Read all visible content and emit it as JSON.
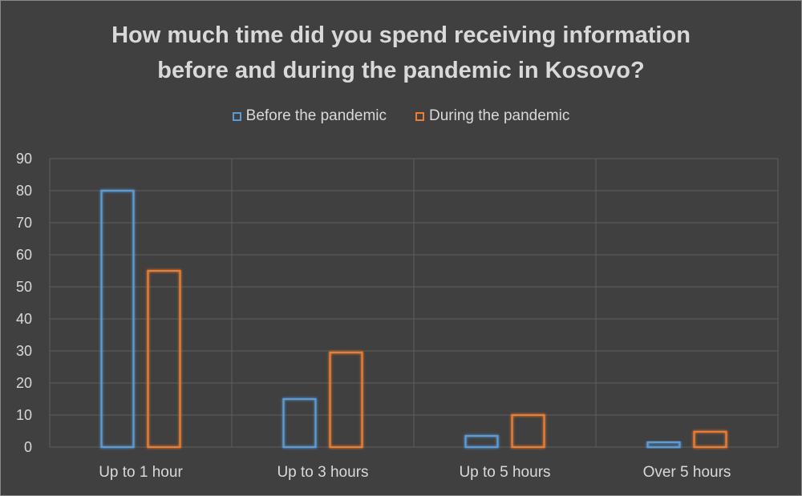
{
  "chart_data": {
    "type": "bar",
    "title_lines": [
      "How much time did you spend receiving information",
      "before and during the pandemic in Kosovo?"
    ],
    "categories": [
      "Up to 1 hour",
      "Up to 3 hours",
      "Up to 5 hours",
      "Over 5 hours"
    ],
    "series": [
      {
        "name": "Before the pandemic",
        "values": [
          80,
          15,
          3.5,
          1.5
        ],
        "color": "#5b9bd5"
      },
      {
        "name": "During the pandemic",
        "values": [
          55,
          29.5,
          10,
          4.8
        ],
        "color": "#ed7d31"
      }
    ],
    "y_ticks": [
      "0",
      "10",
      "20",
      "30",
      "40",
      "50",
      "60",
      "70",
      "80",
      "90"
    ],
    "ylim": [
      0,
      90
    ],
    "grid": true,
    "legend_position": "top",
    "xlabel": "",
    "ylabel": ""
  }
}
